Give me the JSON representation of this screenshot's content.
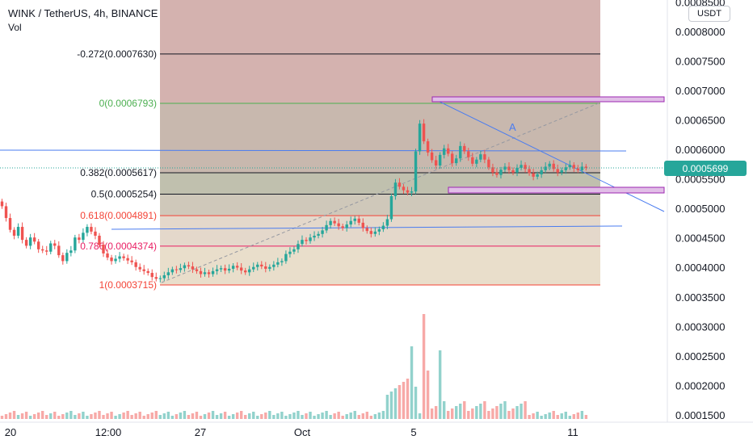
{
  "header": {
    "symbol_line": "WINK / TetherUS, 4h, BINANCE",
    "indicator": "Vol",
    "currency_button": "USDT"
  },
  "price_axis": {
    "labels": [
      "0.0008500",
      "0.0008000",
      "0.0007500",
      "0.0007000",
      "0.0006500",
      "0.0006000",
      "0.0005500",
      "0.0005000",
      "0.0004500",
      "0.0004000",
      "0.0003500",
      "0.0003000",
      "0.0002500",
      "0.0002000",
      "0.0001500"
    ],
    "last_price": "0.0005699",
    "last_price_color": "#26a69a"
  },
  "time_axis": {
    "labels": [
      "20",
      "12:00",
      "27",
      "Oct",
      "5",
      "11"
    ]
  },
  "fib_levels": [
    {
      "label": "-0.272(0.0007630)",
      "ratio": -0.272,
      "price": 0.000763,
      "color": "#131722"
    },
    {
      "label": "0(0.0006793)",
      "ratio": 0,
      "price": 0.0006793,
      "color": "#4caf50"
    },
    {
      "label": "0.382(0.0005617)",
      "ratio": 0.382,
      "price": 0.0005617,
      "color": "#131722"
    },
    {
      "label": "0.5(0.0005254)",
      "ratio": 0.5,
      "price": 0.0005254,
      "color": "#131722"
    },
    {
      "label": "0.618(0.0004891)",
      "ratio": 0.618,
      "price": 0.0004891,
      "color": "#f44336"
    },
    {
      "label": "0.786(0.0004374)",
      "ratio": 0.786,
      "price": 0.0004374,
      "color": "#e91e63"
    },
    {
      "label": "1(0.0003715)",
      "ratio": 1,
      "price": 0.0003715,
      "color": "#f44336"
    }
  ],
  "annotations": {
    "pattern_label": "A"
  },
  "colors": {
    "up": "#26a69a",
    "down": "#ef5350",
    "trendline": "#4a7cf0",
    "zone": "#9c27b0"
  },
  "chart_data": {
    "type": "candlestick",
    "title": "WINK / TetherUS, 4h, BINANCE",
    "ylabel": "USDT",
    "ylim": [
      0.00015,
      0.00085
    ],
    "grid": false,
    "close": [
      0.000505,
      0.000485,
      0.000465,
      0.000455,
      0.00047,
      0.000448,
      0.000438,
      0.000452,
      0.000445,
      0.000432,
      0.00043,
      0.000428,
      0.000442,
      0.000438,
      0.000422,
      0.000412,
      0.000426,
      0.00043,
      0.000452,
      0.000448,
      0.00046,
      0.00047,
      0.000462,
      0.000455,
      0.00044,
      0.000425,
      0.000418,
      0.000412,
      0.000416,
      0.00042,
      0.000417,
      0.000413,
      0.00041,
      0.000402,
      0.000398,
      0.000395,
      0.000392,
      0.000385,
      0.000382,
      0.000383,
      0.000388,
      0.000393,
      0.000398,
      0.000397,
      0.0004,
      0.000405,
      0.000403,
      0.000398,
      0.000395,
      0.00039,
      0.000393,
      0.00039,
      0.000395,
      0.000398,
      0.0004,
      0.000396,
      0.000399,
      0.000404,
      0.000401,
      0.000396,
      0.000393,
      0.000398,
      0.000402,
      0.000406,
      0.000403,
      0.000399,
      0.000402,
      0.000406,
      0.00041,
      0.000412,
      0.000424,
      0.000428,
      0.000432,
      0.000441,
      0.000448,
      0.000446,
      0.000452,
      0.000455,
      0.000458,
      0.000464,
      0.000473,
      0.00048,
      0.000476,
      0.000471,
      0.000468,
      0.000474,
      0.00048,
      0.000484,
      0.000477,
      0.000468,
      0.000463,
      0.000458,
      0.000462,
      0.000466,
      0.000472,
      0.000483,
      0.000522,
      0.000545,
      0.000538,
      0.000532,
      0.000528,
      0.00053,
      0.000598,
      0.000645,
      0.000615,
      0.000596,
      0.000583,
      0.000574,
      0.000592,
      0.000603,
      0.000594,
      0.000578,
      0.000586,
      0.000607,
      0.000598,
      0.000588,
      0.000577,
      0.000584,
      0.000593,
      0.000584,
      0.000571,
      0.000562,
      0.000558,
      0.000567,
      0.000572,
      0.000566,
      0.000562,
      0.00057,
      0.000575,
      0.000568,
      0.000561,
      0.000555,
      0.000559,
      0.000566,
      0.000572,
      0.000577,
      0.000568,
      0.000562,
      0.000566,
      0.000571,
      0.000575,
      0.000569,
      0.000566,
      0.000572,
      0.00057
    ],
    "volume_relative": "volume shown as bars beneath price, peak near Oct 5-7 breakout"
  }
}
